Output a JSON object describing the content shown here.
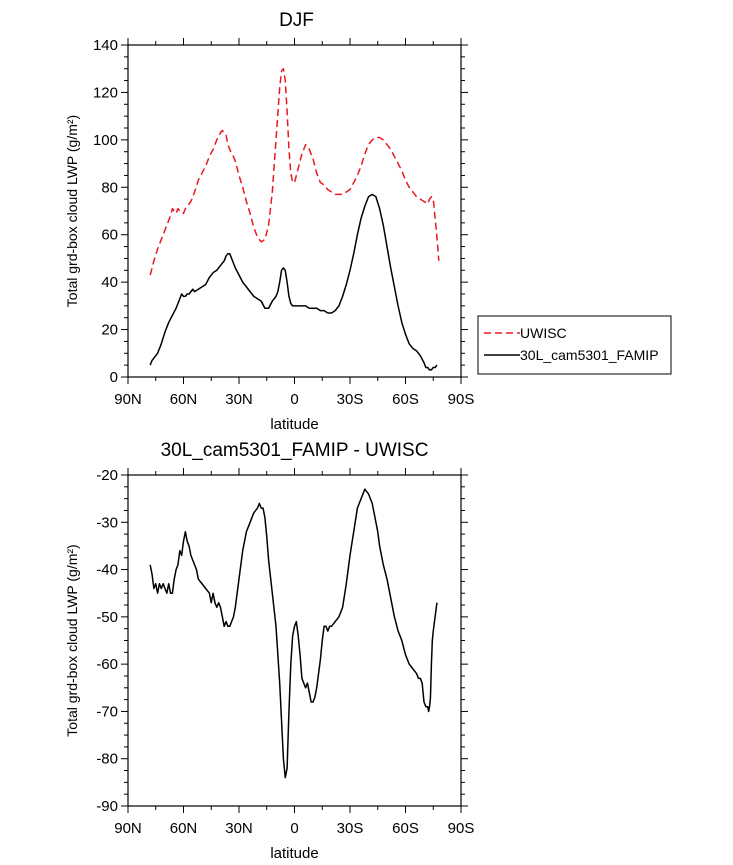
{
  "chart_data": [
    {
      "type": "line",
      "title": "DJF",
      "xlabel": "latitude",
      "ylabel": "Total grd-box cloud LWP (g/m²)",
      "xlim": [
        90,
        -90
      ],
      "ylim": [
        0,
        140
      ],
      "xticks": [
        90,
        60,
        30,
        0,
        -30,
        -60,
        -90
      ],
      "xtick_labels": [
        "90N",
        "60N",
        "30N",
        "0",
        "30S",
        "60S",
        "90S"
      ],
      "yticks": [
        0,
        20,
        40,
        60,
        80,
        100,
        120,
        140
      ],
      "ytick_labels": [
        "0",
        "20",
        "40",
        "60",
        "80",
        "100",
        "120",
        "140"
      ],
      "grid": false,
      "legend": {
        "placement": "right-outside"
      },
      "series": [
        {
          "name": "UWISC",
          "color": "#e8191e",
          "style": "dashed",
          "x": [
            78,
            76,
            74,
            72,
            70,
            68,
            67,
            66,
            65,
            64,
            63,
            62,
            61,
            60,
            59,
            58,
            57,
            56,
            55,
            54,
            52,
            50,
            48,
            46,
            44,
            42,
            40,
            39,
            38,
            37,
            36,
            35,
            34,
            33,
            32,
            31,
            30,
            28,
            26,
            24,
            22,
            20,
            18,
            16,
            14,
            12,
            10,
            8,
            7,
            6,
            5,
            4,
            3,
            2,
            1,
            0,
            -1,
            -2,
            -4,
            -6,
            -8,
            -10,
            -12,
            -14,
            -16,
            -18,
            -20,
            -22,
            -24,
            -26,
            -28,
            -30,
            -32,
            -34,
            -36,
            -38,
            -40,
            -42,
            -44,
            -46,
            -48,
            -50,
            -52,
            -54,
            -56,
            -58,
            -60,
            -62,
            -64,
            -66,
            -68,
            -70,
            -72,
            -73,
            -74,
            -75,
            -76,
            -77,
            -78
          ],
          "y": [
            43,
            49,
            54,
            58,
            62,
            66,
            68,
            71,
            70,
            69,
            71,
            70,
            70,
            69,
            71,
            72,
            73,
            74,
            76,
            78,
            83,
            86,
            89,
            93,
            96,
            100,
            103,
            104,
            103,
            102,
            98,
            96,
            94,
            93,
            91,
            88,
            85,
            80,
            74,
            69,
            63,
            59,
            57,
            58,
            64,
            78,
            100,
            122,
            129,
            130,
            125,
            112,
            96,
            86,
            82,
            82,
            85,
            88,
            94,
            98,
            96,
            92,
            86,
            82,
            81,
            79,
            78,
            77,
            77,
            77,
            78,
            79,
            82,
            85,
            89,
            94,
            98,
            100,
            101,
            101,
            100,
            98,
            96,
            93,
            90,
            87,
            83,
            80,
            78,
            76,
            75,
            74,
            73,
            75,
            76,
            75,
            67,
            59,
            49
          ]
        },
        {
          "name": "30L_cam5301_FAMIP",
          "color": "#000000",
          "style": "solid",
          "x": [
            78,
            77,
            76,
            74,
            72,
            70,
            68,
            66,
            64,
            62,
            61,
            60,
            59,
            58,
            57,
            56,
            55,
            54,
            52,
            50,
            48,
            46,
            44,
            42,
            40,
            38,
            37,
            36,
            35,
            34,
            32,
            30,
            28,
            26,
            24,
            22,
            20,
            18,
            16,
            14,
            12,
            10,
            9,
            8,
            7,
            6,
            5,
            4,
            3,
            2,
            1,
            0,
            -1,
            -2,
            -4,
            -6,
            -8,
            -10,
            -12,
            -14,
            -16,
            -18,
            -20,
            -22,
            -24,
            -26,
            -28,
            -30,
            -32,
            -34,
            -36,
            -38,
            -40,
            -42,
            -44,
            -46,
            -48,
            -50,
            -52,
            -54,
            -56,
            -58,
            -60,
            -62,
            -64,
            -66,
            -68,
            -70,
            -71,
            -72,
            -73,
            -74,
            -75,
            -76,
            -77
          ],
          "y": [
            5,
            7,
            8,
            10,
            14,
            19,
            23,
            26,
            29,
            33,
            35,
            34,
            34,
            35,
            35,
            36,
            37,
            36,
            37,
            38,
            39,
            42,
            44,
            45,
            47,
            49,
            51,
            52,
            52,
            50,
            46,
            43,
            40,
            38,
            36,
            34,
            33,
            32,
            29,
            29,
            32,
            34,
            36,
            40,
            45,
            46,
            45,
            40,
            34,
            31,
            30,
            30,
            30,
            30,
            30,
            30,
            29,
            29,
            29,
            28,
            28,
            27,
            27,
            28,
            30,
            34,
            39,
            45,
            52,
            60,
            67,
            72,
            76,
            77,
            76,
            71,
            64,
            55,
            46,
            38,
            30,
            23,
            18,
            14,
            12,
            11,
            9,
            6,
            4,
            4,
            3,
            3,
            4,
            4,
            5
          ]
        }
      ]
    },
    {
      "type": "line",
      "title": "30L_cam5301_FAMIP - UWISC",
      "xlabel": "latitude",
      "ylabel": "Total grd-box cloud LWP (g/m²)",
      "xlim": [
        90,
        -90
      ],
      "ylim": [
        -90,
        -20
      ],
      "xticks": [
        90,
        60,
        30,
        0,
        -30,
        -60,
        -90
      ],
      "xtick_labels": [
        "90N",
        "60N",
        "30N",
        "0",
        "30S",
        "60S",
        "90S"
      ],
      "yticks": [
        -90,
        -80,
        -70,
        -60,
        -50,
        -40,
        -30,
        -20
      ],
      "ytick_labels": [
        "-90",
        "-80",
        "-70",
        "-60",
        "-50",
        "-40",
        "-30",
        "-20"
      ],
      "grid": false,
      "series": [
        {
          "color": "#000000",
          "style": "solid",
          "x": [
            78,
            77,
            76,
            75,
            74,
            73,
            72,
            71,
            70,
            69,
            68,
            67,
            66,
            65,
            64,
            63,
            62,
            61,
            60,
            59,
            58,
            57,
            56,
            55,
            54,
            53,
            52,
            50,
            48,
            46,
            45,
            44,
            43,
            42,
            41,
            40,
            39,
            38,
            37,
            36,
            35,
            34,
            33,
            32,
            30,
            28,
            26,
            24,
            22,
            20,
            19,
            18,
            17,
            16,
            15,
            14,
            12,
            10,
            8,
            7,
            6,
            5,
            4,
            3,
            2,
            1,
            0,
            -1,
            -2,
            -3,
            -4,
            -5,
            -6,
            -7,
            -8,
            -9,
            -10,
            -11,
            -12,
            -13,
            -14,
            -15,
            -16,
            -17,
            -18,
            -19,
            -20,
            -22,
            -24,
            -26,
            -28,
            -30,
            -32,
            -34,
            -36,
            -38,
            -40,
            -42,
            -44,
            -45,
            -46,
            -47,
            -48,
            -50,
            -52,
            -54,
            -56,
            -58,
            -60,
            -62,
            -64,
            -66,
            -67,
            -68,
            -69,
            -70,
            -71,
            -72,
            -72.5,
            -73,
            -73.5,
            -74,
            -74.5,
            -75,
            -76,
            -77
          ],
          "y": [
            -39,
            -41,
            -44,
            -43,
            -45,
            -43,
            -44,
            -43,
            -44,
            -45,
            -43,
            -45,
            -45,
            -42,
            -40,
            -39,
            -36,
            -37,
            -34,
            -32,
            -34,
            -35,
            -37,
            -38,
            -39,
            -40,
            -42,
            -43,
            -44,
            -45,
            -47,
            -45,
            -47,
            -48,
            -47,
            -48,
            -50,
            -52,
            -51,
            -52,
            -52,
            -51,
            -50,
            -48,
            -42,
            -36,
            -32,
            -30,
            -28,
            -27,
            -26,
            -27,
            -27,
            -29,
            -33,
            -38,
            -45,
            -52,
            -64,
            -72,
            -80,
            -84,
            -82,
            -70,
            -60,
            -54,
            -52,
            -51,
            -54,
            -58,
            -63,
            -64,
            -65,
            -64,
            -66,
            -68,
            -68,
            -67,
            -65,
            -62,
            -59,
            -55,
            -52,
            -52,
            -53,
            -52,
            -52,
            -51,
            -50,
            -48,
            -43,
            -37,
            -32,
            -27,
            -25,
            -23,
            -24,
            -26,
            -30,
            -32,
            -35,
            -37,
            -39,
            -42,
            -46,
            -50,
            -53,
            -55,
            -58,
            -60,
            -61,
            -62,
            -63,
            -63,
            -64,
            -68,
            -69,
            -69,
            -70,
            -69,
            -67,
            -60,
            -55,
            -53,
            -50,
            -47
          ]
        }
      ]
    }
  ]
}
